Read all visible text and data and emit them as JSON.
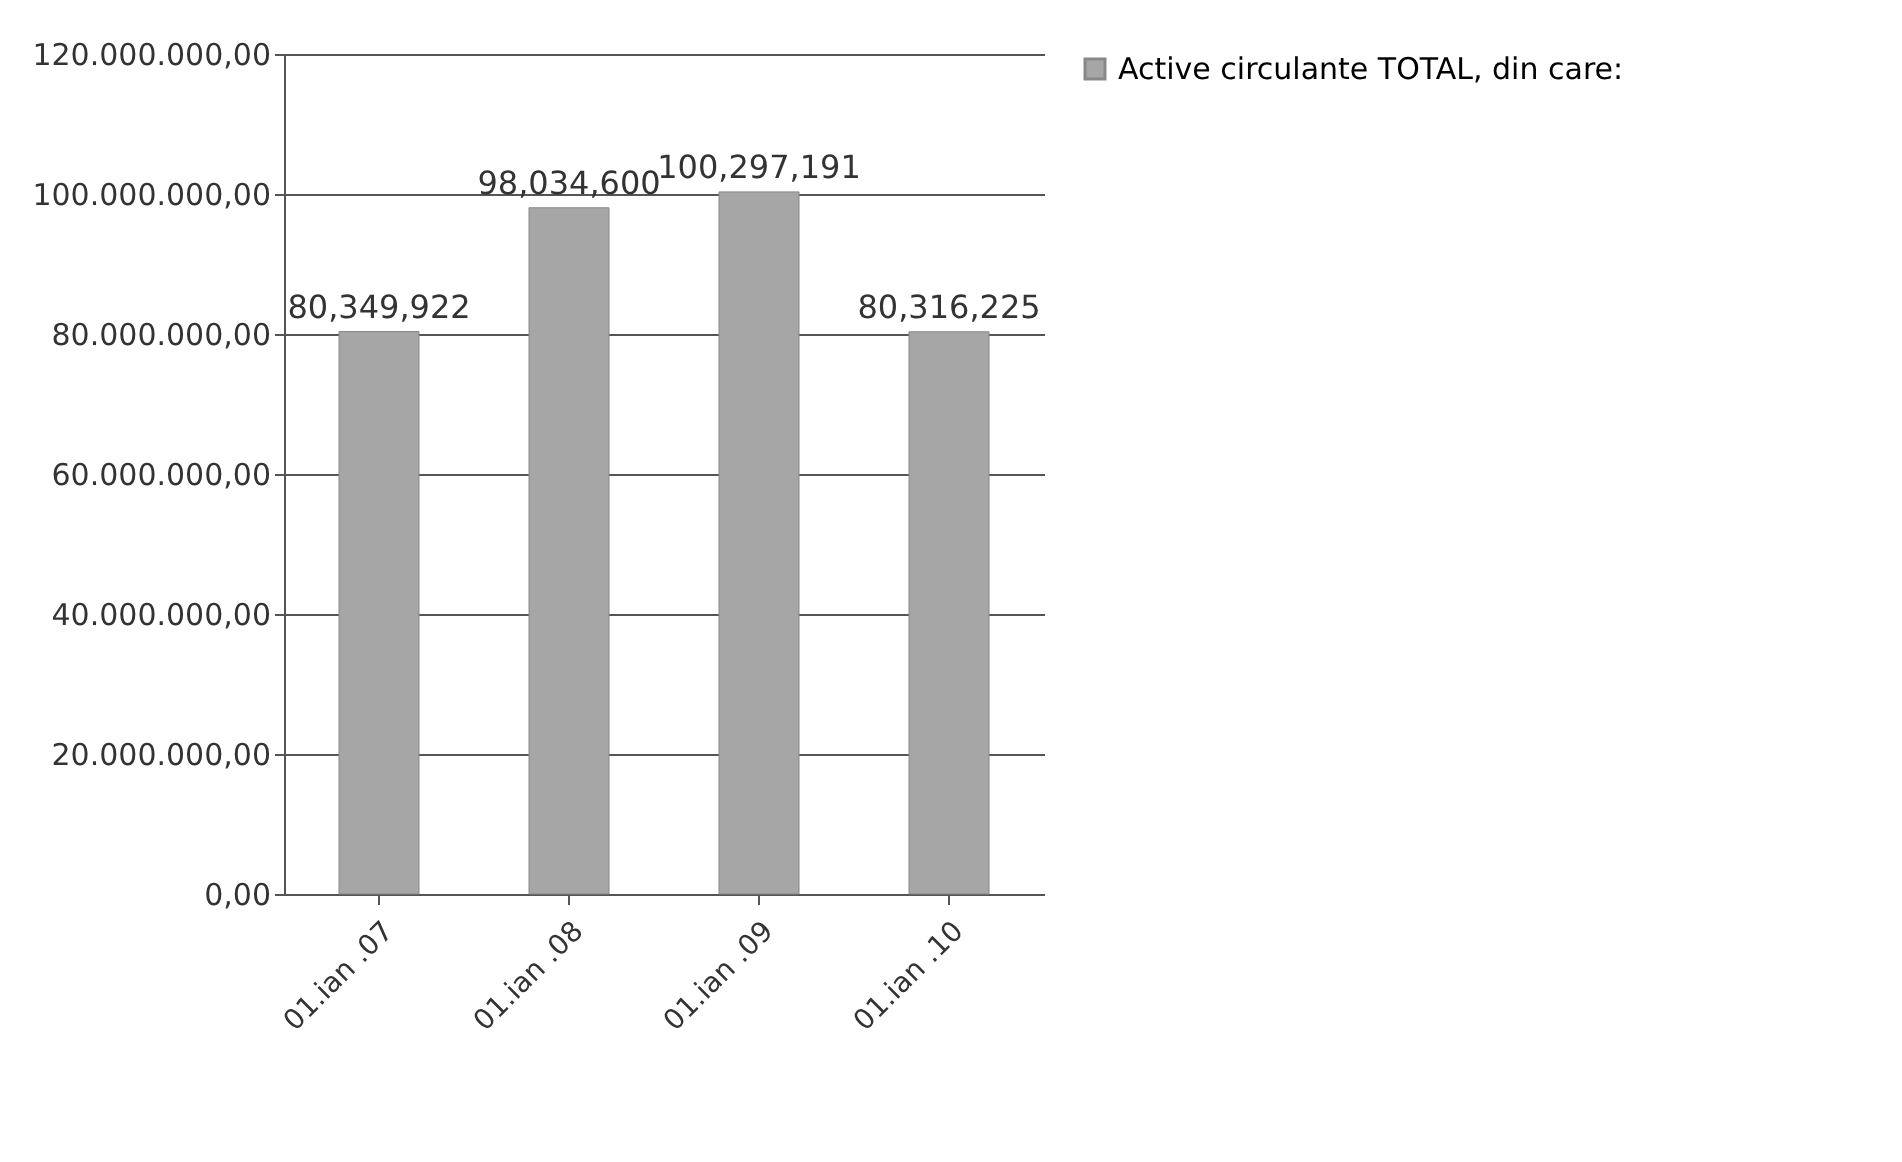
{
  "chart_data": {
    "type": "bar",
    "categories": [
      "01.ian .07",
      "01.ian .08",
      "01.ian .09",
      "01.ian .10"
    ],
    "series": [
      {
        "name": "Active circulante TOTAL, din care:",
        "color": "#a6a6a6",
        "values": [
          80349922,
          98034600,
          100297191,
          80316225
        ],
        "value_labels": [
          "80,349,922",
          "98,034,600",
          "100,297,191",
          "80,316,225"
        ]
      }
    ],
    "ylim": [
      0,
      120000000
    ],
    "yticks": [
      {
        "value": 0,
        "label": "0,00"
      },
      {
        "value": 20000000,
        "label": "20.000.000,00"
      },
      {
        "value": 40000000,
        "label": "40.000.000,00"
      },
      {
        "value": 60000000,
        "label": "60.000.000,00"
      },
      {
        "value": 80000000,
        "label": "80.000.000,00"
      },
      {
        "value": 100000000,
        "label": "100.000.000,00"
      },
      {
        "value": 120000000,
        "label": "120.000.000,00"
      }
    ],
    "grid": "y",
    "legend": "right"
  }
}
